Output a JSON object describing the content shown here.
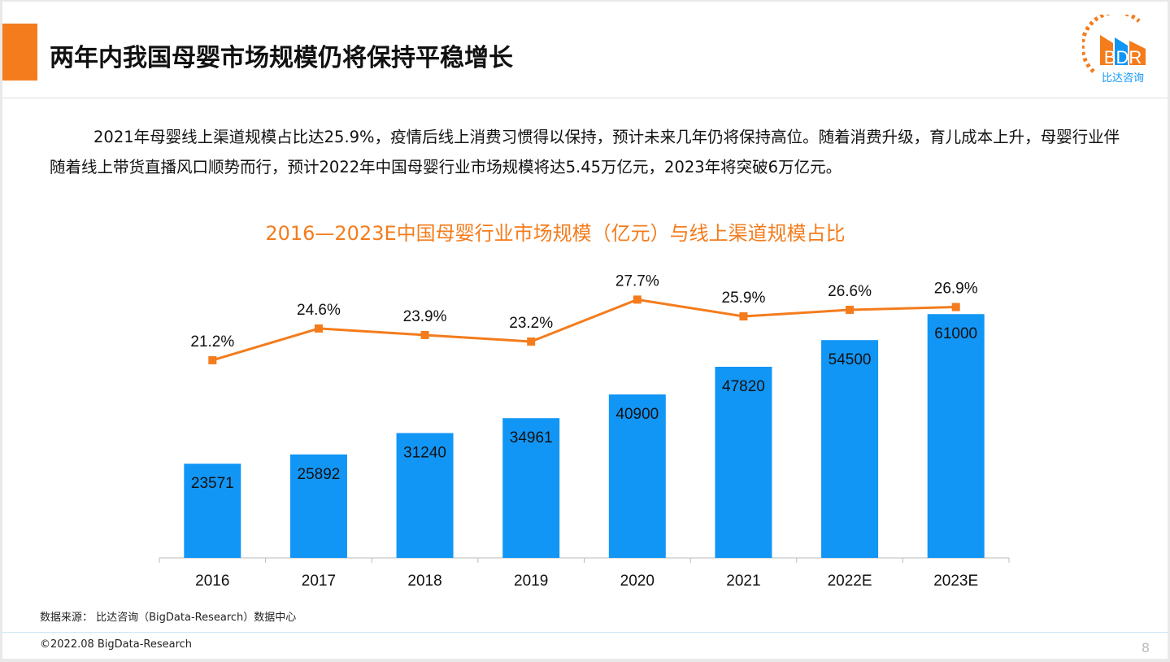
{
  "header": {
    "title": "两年内我国母婴市场规模仍将保持平稳增长",
    "logo_text": "BDR",
    "logo_subtext": "比达咨询"
  },
  "paragraph": "2021年母婴线上渠道规模占比达25.9%，疫情后线上消费习惯得以保持，预计未来几年仍将保持高位。随着消费升级，育儿成本上升，母婴行业伴随着线上带货直播风口顺势而行，预计2022年中国母婴行业市场规模将达5.45万亿元，2023年将突破6万亿元。",
  "chart_data": {
    "type": "bar",
    "title": "2016—2023E中国母婴行业市场规模（亿元）与线上渠道规模占比",
    "categories": [
      "2016",
      "2017",
      "2018",
      "2019",
      "2020",
      "2021",
      "2022E",
      "2023E"
    ],
    "series": [
      {
        "type": "bar",
        "values": [
          23571,
          25892,
          31240,
          34961,
          40900,
          47820,
          54500,
          61000
        ],
        "color": "#1296f5"
      },
      {
        "type": "line",
        "values": [
          21.2,
          24.6,
          23.9,
          23.2,
          27.7,
          25.9,
          26.6,
          26.9
        ],
        "labels": [
          "21.2%",
          "24.6%",
          "23.9%",
          "23.2%",
          "27.7%",
          "25.9%",
          "26.6%",
          "26.9%"
        ],
        "color": "#f47c1c",
        "axis": "secondary"
      }
    ],
    "ylim": [
      0,
      70000
    ],
    "y2lim": [
      0,
      30
    ],
    "grid": false
  },
  "footer": {
    "source": "数据来源： 比达咨询（BigData-Research）数据中心",
    "copyright": "©2022.08 BigData-Research",
    "page": "8"
  },
  "colors": {
    "accent": "#f47c1c",
    "bar": "#1296f5"
  }
}
